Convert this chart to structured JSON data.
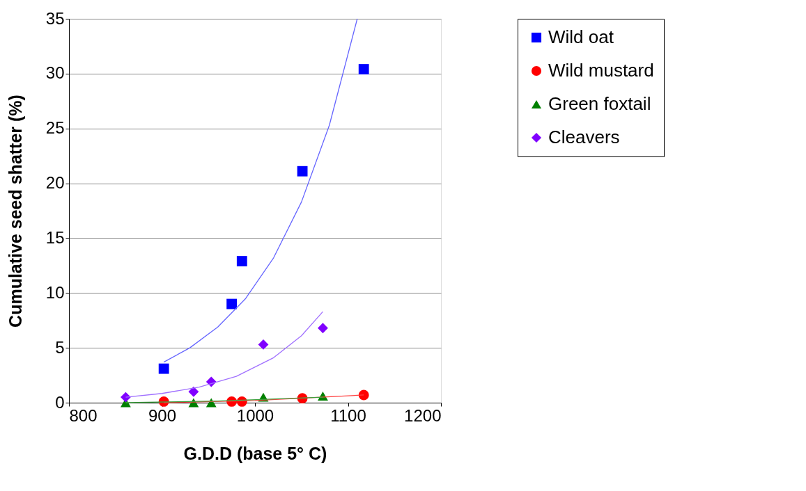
{
  "chart_data": {
    "type": "scatter",
    "xlabel": "G.D.D (base 5° C)",
    "ylabel": "Cumulative seed shatter (%)",
    "xlim": [
      800,
      1200
    ],
    "xticks": [
      800,
      900,
      1000,
      1100,
      1200
    ],
    "ylim": [
      0,
      35
    ],
    "yticks": [
      0,
      5,
      10,
      15,
      20,
      25,
      30,
      35
    ],
    "grid": "y",
    "legend": "right",
    "series": [
      {
        "name": "Wild oat",
        "color": "#0000ff",
        "marker": "square",
        "x": [
          902,
          975,
          986,
          1051,
          1117
        ],
        "values": [
          3.1,
          9.0,
          12.9,
          21.1,
          30.4
        ]
      },
      {
        "name": "Wild mustard",
        "color": "#ff0000",
        "marker": "circle",
        "x": [
          902,
          975,
          986,
          1051,
          1117
        ],
        "values": [
          0.1,
          0.1,
          0.1,
          0.4,
          0.7
        ]
      },
      {
        "name": "Green foxtail",
        "color": "#008000",
        "marker": "triangle",
        "x": [
          861,
          934,
          953,
          1009,
          1073
        ],
        "values": [
          0,
          0,
          0,
          0.5,
          0.6
        ]
      },
      {
        "name": "Cleavers",
        "color": "#8000ff",
        "marker": "diamond",
        "x": [
          861,
          934,
          953,
          1009,
          1073
        ],
        "values": [
          0.5,
          1.0,
          1.9,
          5.3,
          6.8
        ]
      },
      {
        "type": "line",
        "color": "#6666ff",
        "x": [
          902,
          930,
          960,
          990,
          1020,
          1050,
          1080,
          1110
        ],
        "values": [
          3.7,
          5.0,
          6.9,
          9.5,
          13.2,
          18.3,
          25.3,
          35.0
        ]
      },
      {
        "type": "line",
        "color": "#ff4040",
        "x": [
          902,
          1000,
          1117
        ],
        "values": [
          0.0,
          0.2,
          0.7
        ]
      },
      {
        "type": "line",
        "color": "#40a040",
        "x": [
          861,
          960,
          1073
        ],
        "values": [
          0.0,
          0.15,
          0.5
        ]
      },
      {
        "type": "line",
        "color": "#a070ff",
        "x": [
          861,
          900,
          940,
          980,
          1020,
          1050,
          1073
        ],
        "values": [
          0.5,
          0.84,
          1.42,
          2.4,
          4.1,
          6.1,
          8.3
        ]
      }
    ]
  }
}
